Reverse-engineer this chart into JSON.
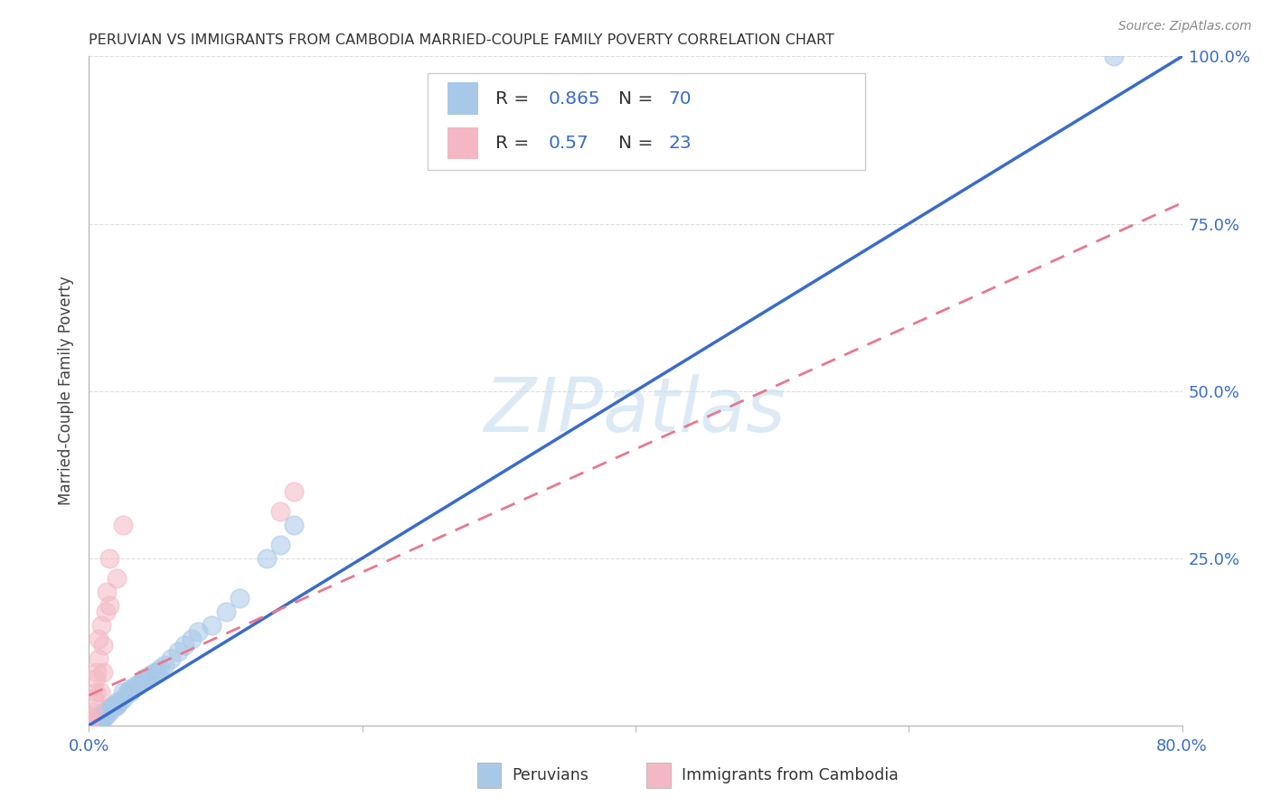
{
  "title": "PERUVIAN VS IMMIGRANTS FROM CAMBODIA MARRIED-COUPLE FAMILY POVERTY CORRELATION CHART",
  "source": "Source: ZipAtlas.com",
  "ylabel": "Married-Couple Family Poverty",
  "xlim": [
    0.0,
    0.8
  ],
  "ylim": [
    0.0,
    1.0
  ],
  "blue_R": 0.865,
  "blue_N": 70,
  "pink_R": 0.57,
  "pink_N": 23,
  "blue_color": "#a8c8e8",
  "pink_color": "#f4b8c4",
  "blue_line_color": "#3a6cc8",
  "pink_line_color": "#e87890",
  "legend_label_blue": "Peruvians",
  "legend_label_pink": "Immigrants from Cambodia",
  "watermark": "ZIPatlas",
  "blue_slope": 1.25,
  "blue_intercept": 0.0,
  "pink_slope": 0.92,
  "pink_intercept": 0.045,
  "blue_scatter_x": [
    0.0,
    0.0,
    0.0,
    0.0,
    0.0,
    0.003,
    0.003,
    0.003,
    0.003,
    0.005,
    0.005,
    0.005,
    0.005,
    0.005,
    0.006,
    0.006,
    0.006,
    0.007,
    0.007,
    0.007,
    0.008,
    0.008,
    0.008,
    0.008,
    0.009,
    0.009,
    0.01,
    0.01,
    0.01,
    0.01,
    0.012,
    0.012,
    0.013,
    0.014,
    0.015,
    0.015,
    0.016,
    0.017,
    0.018,
    0.019,
    0.02,
    0.02,
    0.022,
    0.025,
    0.025,
    0.028,
    0.03,
    0.03,
    0.032,
    0.035,
    0.038,
    0.04,
    0.042,
    0.045,
    0.048,
    0.05,
    0.052,
    0.055,
    0.06,
    0.065,
    0.07,
    0.075,
    0.08,
    0.09,
    0.1,
    0.11,
    0.13,
    0.14,
    0.15,
    0.75
  ],
  "blue_scatter_y": [
    0.0,
    0.0,
    0.0,
    0.005,
    0.005,
    0.0,
    0.0,
    0.005,
    0.005,
    0.0,
    0.0,
    0.005,
    0.005,
    0.01,
    0.005,
    0.005,
    0.01,
    0.005,
    0.01,
    0.01,
    0.005,
    0.01,
    0.01,
    0.015,
    0.01,
    0.015,
    0.01,
    0.015,
    0.015,
    0.02,
    0.015,
    0.02,
    0.02,
    0.025,
    0.02,
    0.025,
    0.025,
    0.03,
    0.03,
    0.03,
    0.03,
    0.035,
    0.035,
    0.04,
    0.05,
    0.05,
    0.05,
    0.055,
    0.055,
    0.06,
    0.065,
    0.07,
    0.07,
    0.075,
    0.08,
    0.08,
    0.085,
    0.09,
    0.1,
    0.11,
    0.12,
    0.13,
    0.14,
    0.15,
    0.17,
    0.19,
    0.25,
    0.27,
    0.3,
    1.0
  ],
  "pink_scatter_x": [
    0.0,
    0.0,
    0.0,
    0.0,
    0.003,
    0.004,
    0.005,
    0.005,
    0.006,
    0.007,
    0.007,
    0.008,
    0.009,
    0.01,
    0.01,
    0.012,
    0.013,
    0.015,
    0.015,
    0.02,
    0.025,
    0.14,
    0.15
  ],
  "pink_scatter_y": [
    0.0,
    0.005,
    0.01,
    0.015,
    0.02,
    0.04,
    0.05,
    0.07,
    0.08,
    0.1,
    0.13,
    0.05,
    0.15,
    0.08,
    0.12,
    0.17,
    0.2,
    0.18,
    0.25,
    0.22,
    0.3,
    0.32,
    0.35
  ]
}
